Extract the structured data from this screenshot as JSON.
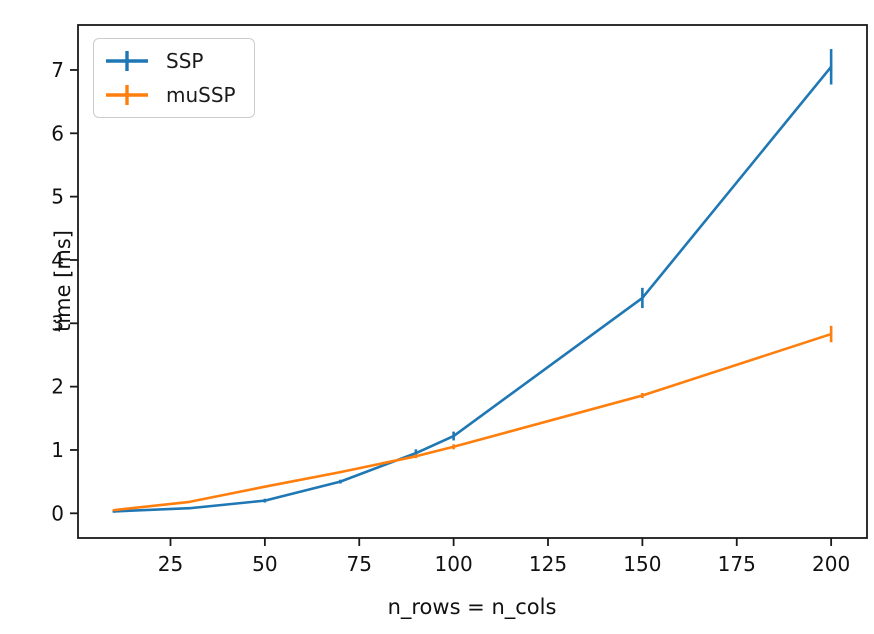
{
  "figure": {
    "background_color": "#ffffff",
    "spine_color": "#1a1a1a",
    "tick_label_color": "#111111"
  },
  "chart_data": {
    "type": "line",
    "subtype": "errorbar",
    "title": "",
    "xlabel": "n_rows = n_cols",
    "ylabel": "time [ms]",
    "x": [
      10,
      30,
      50,
      70,
      90,
      100,
      150,
      200
    ],
    "series": [
      {
        "name": "SSP",
        "color": "#1f77b4",
        "values": [
          0.03,
          0.08,
          0.2,
          0.5,
          0.95,
          1.22,
          3.4,
          7.05
        ],
        "yerr": [
          0.02,
          0.02,
          0.03,
          0.03,
          0.06,
          0.07,
          0.16,
          0.28
        ]
      },
      {
        "name": "muSSP",
        "color": "#ff7f0e",
        "values": [
          0.05,
          0.18,
          0.42,
          0.65,
          0.9,
          1.05,
          1.86,
          2.83
        ],
        "yerr": [
          0.01,
          0.01,
          0.02,
          0.02,
          0.03,
          0.04,
          0.04,
          0.13
        ]
      }
    ],
    "xticks": [
      25,
      50,
      75,
      100,
      125,
      150,
      175,
      200
    ],
    "yticks": [
      0,
      1,
      2,
      3,
      4,
      5,
      6,
      7
    ],
    "xlim": [
      0.5,
      209.5
    ],
    "ylim": [
      -0.39,
      7.71
    ],
    "grid": false,
    "legend_position": "upper left"
  }
}
